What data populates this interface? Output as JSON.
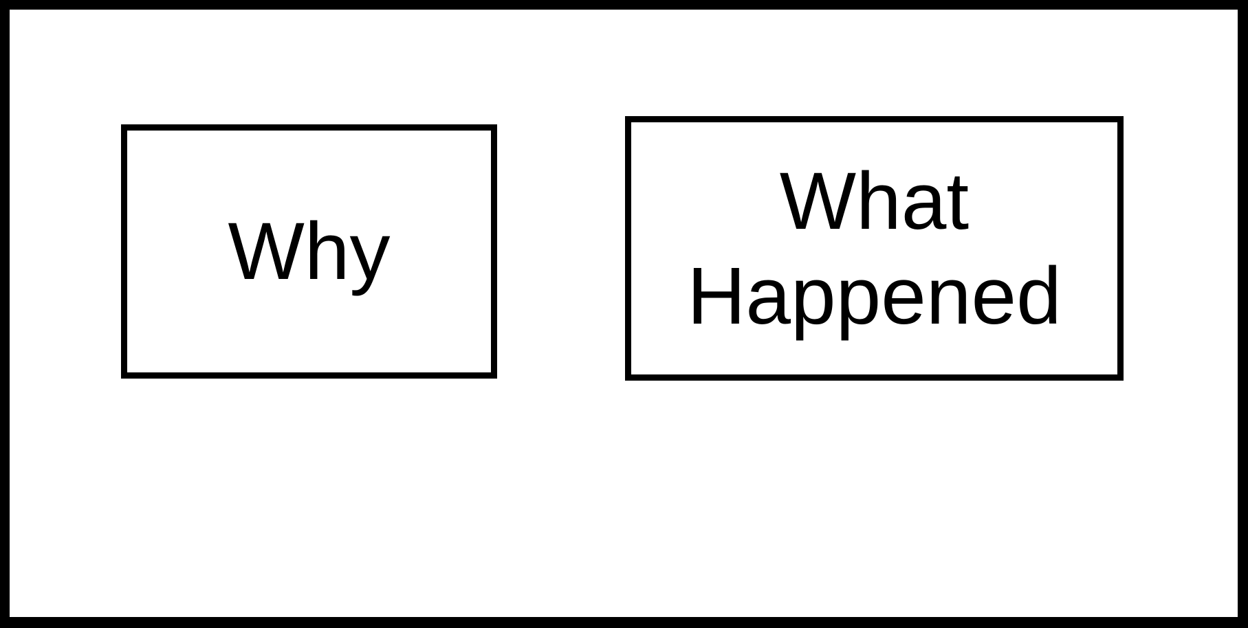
{
  "diagram": {
    "nodes": [
      {
        "id": "why",
        "label": "Why"
      },
      {
        "id": "what-happened",
        "label": "What\nHappened"
      }
    ]
  }
}
